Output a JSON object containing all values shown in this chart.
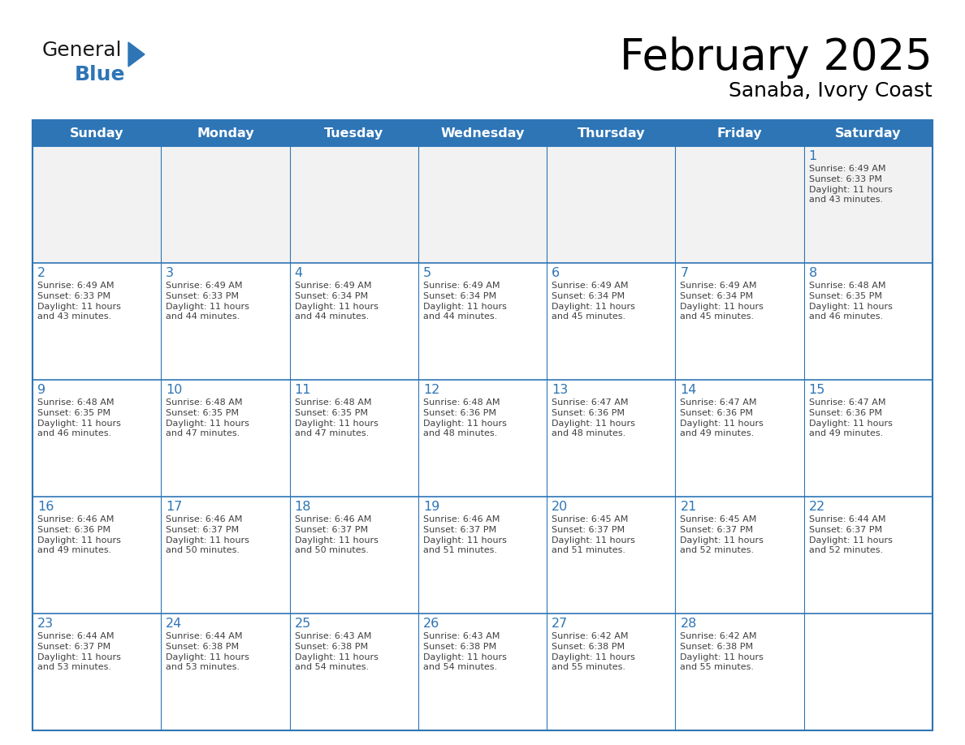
{
  "title": "February 2025",
  "subtitle": "Sanaba, Ivory Coast",
  "header_bg": "#2E75B6",
  "header_text_color": "#FFFFFF",
  "cell_bg_white": "#FFFFFF",
  "cell_bg_grey": "#F2F2F2",
  "border_color": "#2E75B6",
  "day_number_color": "#2E75B6",
  "cell_text_color": "#404040",
  "logo_general_color": "#1a1a1a",
  "logo_blue_color": "#2E75B6",
  "logo_triangle_color": "#2E75B6",
  "days_of_week": [
    "Sunday",
    "Monday",
    "Tuesday",
    "Wednesday",
    "Thursday",
    "Friday",
    "Saturday"
  ],
  "calendar_data": [
    [
      null,
      null,
      null,
      null,
      null,
      null,
      1
    ],
    [
      2,
      3,
      4,
      5,
      6,
      7,
      8
    ],
    [
      9,
      10,
      11,
      12,
      13,
      14,
      15
    ],
    [
      16,
      17,
      18,
      19,
      20,
      21,
      22
    ],
    [
      23,
      24,
      25,
      26,
      27,
      28,
      null
    ]
  ],
  "sunrise_data": {
    "1": "Sunrise: 6:49 AM\nSunset: 6:33 PM\nDaylight: 11 hours\nand 43 minutes.",
    "2": "Sunrise: 6:49 AM\nSunset: 6:33 PM\nDaylight: 11 hours\nand 43 minutes.",
    "3": "Sunrise: 6:49 AM\nSunset: 6:33 PM\nDaylight: 11 hours\nand 44 minutes.",
    "4": "Sunrise: 6:49 AM\nSunset: 6:34 PM\nDaylight: 11 hours\nand 44 minutes.",
    "5": "Sunrise: 6:49 AM\nSunset: 6:34 PM\nDaylight: 11 hours\nand 44 minutes.",
    "6": "Sunrise: 6:49 AM\nSunset: 6:34 PM\nDaylight: 11 hours\nand 45 minutes.",
    "7": "Sunrise: 6:49 AM\nSunset: 6:34 PM\nDaylight: 11 hours\nand 45 minutes.",
    "8": "Sunrise: 6:48 AM\nSunset: 6:35 PM\nDaylight: 11 hours\nand 46 minutes.",
    "9": "Sunrise: 6:48 AM\nSunset: 6:35 PM\nDaylight: 11 hours\nand 46 minutes.",
    "10": "Sunrise: 6:48 AM\nSunset: 6:35 PM\nDaylight: 11 hours\nand 47 minutes.",
    "11": "Sunrise: 6:48 AM\nSunset: 6:35 PM\nDaylight: 11 hours\nand 47 minutes.",
    "12": "Sunrise: 6:48 AM\nSunset: 6:36 PM\nDaylight: 11 hours\nand 48 minutes.",
    "13": "Sunrise: 6:47 AM\nSunset: 6:36 PM\nDaylight: 11 hours\nand 48 minutes.",
    "14": "Sunrise: 6:47 AM\nSunset: 6:36 PM\nDaylight: 11 hours\nand 49 minutes.",
    "15": "Sunrise: 6:47 AM\nSunset: 6:36 PM\nDaylight: 11 hours\nand 49 minutes.",
    "16": "Sunrise: 6:46 AM\nSunset: 6:36 PM\nDaylight: 11 hours\nand 49 minutes.",
    "17": "Sunrise: 6:46 AM\nSunset: 6:37 PM\nDaylight: 11 hours\nand 50 minutes.",
    "18": "Sunrise: 6:46 AM\nSunset: 6:37 PM\nDaylight: 11 hours\nand 50 minutes.",
    "19": "Sunrise: 6:46 AM\nSunset: 6:37 PM\nDaylight: 11 hours\nand 51 minutes.",
    "20": "Sunrise: 6:45 AM\nSunset: 6:37 PM\nDaylight: 11 hours\nand 51 minutes.",
    "21": "Sunrise: 6:45 AM\nSunset: 6:37 PM\nDaylight: 11 hours\nand 52 minutes.",
    "22": "Sunrise: 6:44 AM\nSunset: 6:37 PM\nDaylight: 11 hours\nand 52 minutes.",
    "23": "Sunrise: 6:44 AM\nSunset: 6:37 PM\nDaylight: 11 hours\nand 53 minutes.",
    "24": "Sunrise: 6:44 AM\nSunset: 6:38 PM\nDaylight: 11 hours\nand 53 minutes.",
    "25": "Sunrise: 6:43 AM\nSunset: 6:38 PM\nDaylight: 11 hours\nand 54 minutes.",
    "26": "Sunrise: 6:43 AM\nSunset: 6:38 PM\nDaylight: 11 hours\nand 54 minutes.",
    "27": "Sunrise: 6:42 AM\nSunset: 6:38 PM\nDaylight: 11 hours\nand 55 minutes.",
    "28": "Sunrise: 6:42 AM\nSunset: 6:38 PM\nDaylight: 11 hours\nand 55 minutes."
  }
}
